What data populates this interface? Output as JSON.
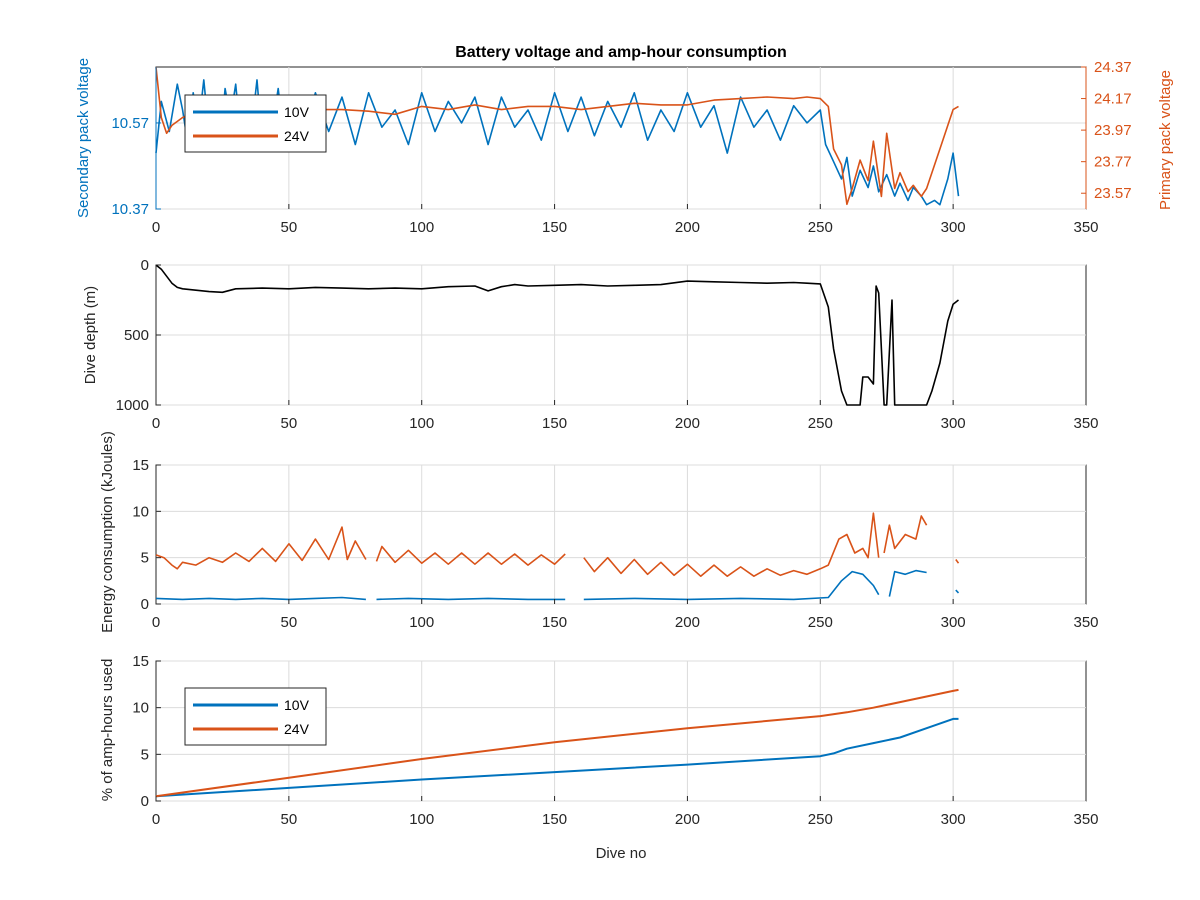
{
  "colors": {
    "blue": "#0072BD",
    "orange": "#D95319",
    "black": "#000000",
    "axis": "#262626",
    "grid": "#dcdcdc"
  },
  "chart_data": [
    {
      "type": "line",
      "title": "Battery voltage and amp-hour consumption",
      "xlabel": "",
      "ylabel": "Secondary pack voltage",
      "ylabel_right": "Primary pack voltage",
      "xlim": [
        0,
        350
      ],
      "ylim": [
        10.37,
        10.7
      ],
      "ylim_right": [
        23.47,
        24.37
      ],
      "xticks": [
        "0",
        "50",
        "100",
        "150",
        "200",
        "250",
        "300",
        "350"
      ],
      "yticks": [
        "10.37",
        "10.57"
      ],
      "yticks_right": [
        "23.57",
        "23.77",
        "23.97",
        "24.17",
        "24.37"
      ],
      "grid": true,
      "legend": {
        "placement": "top-left",
        "entries": [
          "10V",
          "24V"
        ]
      },
      "series": [
        {
          "name": "10V",
          "axis": "left",
          "x": [
            0,
            2,
            5,
            8,
            10,
            12,
            14,
            16,
            18,
            20,
            22,
            24,
            26,
            28,
            30,
            32,
            34,
            36,
            38,
            40,
            42,
            44,
            46,
            48,
            50,
            55,
            60,
            65,
            70,
            75,
            80,
            85,
            90,
            95,
            100,
            105,
            110,
            115,
            120,
            125,
            130,
            135,
            140,
            145,
            150,
            155,
            160,
            165,
            170,
            175,
            180,
            185,
            190,
            195,
            200,
            205,
            210,
            215,
            220,
            225,
            230,
            235,
            240,
            245,
            250,
            252,
            255,
            258,
            260,
            262,
            265,
            268,
            270,
            272,
            275,
            278,
            280,
            283,
            285,
            288,
            290,
            293,
            295,
            298,
            300,
            302
          ],
          "values": [
            10.5,
            10.62,
            10.55,
            10.66,
            10.6,
            10.52,
            10.64,
            10.56,
            10.67,
            10.54,
            10.62,
            10.51,
            10.65,
            10.58,
            10.66,
            10.53,
            10.62,
            10.56,
            10.67,
            10.52,
            10.63,
            10.57,
            10.65,
            10.54,
            10.6,
            10.53,
            10.64,
            10.55,
            10.63,
            10.52,
            10.64,
            10.56,
            10.6,
            10.52,
            10.64,
            10.55,
            10.62,
            10.57,
            10.63,
            10.52,
            10.63,
            10.56,
            10.6,
            10.53,
            10.64,
            10.55,
            10.63,
            10.54,
            10.62,
            10.56,
            10.64,
            10.53,
            10.6,
            10.55,
            10.64,
            10.56,
            10.61,
            10.5,
            10.63,
            10.56,
            10.6,
            10.53,
            10.61,
            10.57,
            10.6,
            10.52,
            10.48,
            10.44,
            10.49,
            10.4,
            10.46,
            10.42,
            10.47,
            10.41,
            10.45,
            10.4,
            10.43,
            10.39,
            10.42,
            10.4,
            10.38,
            10.39,
            10.38,
            10.44,
            10.5,
            10.4
          ]
        },
        {
          "name": "24V",
          "axis": "right",
          "x": [
            0,
            2,
            4,
            6,
            10,
            15,
            20,
            25,
            30,
            40,
            50,
            60,
            70,
            80,
            90,
            100,
            110,
            120,
            130,
            140,
            150,
            160,
            170,
            180,
            190,
            200,
            210,
            220,
            230,
            240,
            245,
            250,
            253,
            255,
            258,
            260,
            262,
            265,
            268,
            270,
            273,
            275,
            278,
            280,
            283,
            285,
            288,
            290,
            292,
            295,
            298,
            300,
            302
          ],
          "values": [
            24.37,
            24.05,
            23.95,
            24.0,
            24.05,
            24.08,
            24.1,
            24.12,
            24.1,
            24.08,
            24.12,
            24.1,
            24.1,
            24.09,
            24.07,
            24.12,
            24.1,
            24.13,
            24.1,
            24.12,
            24.12,
            24.1,
            24.12,
            24.14,
            24.13,
            24.13,
            24.16,
            24.17,
            24.18,
            24.17,
            24.18,
            24.17,
            24.12,
            23.85,
            23.75,
            23.5,
            23.6,
            23.78,
            23.65,
            23.9,
            23.55,
            23.95,
            23.6,
            23.7,
            23.58,
            23.62,
            23.55,
            23.6,
            23.7,
            23.85,
            24.0,
            24.1,
            24.12
          ]
        }
      ]
    },
    {
      "type": "line",
      "title": "",
      "xlabel": "",
      "ylabel": "Dive depth (m)",
      "xlim": [
        0,
        350
      ],
      "ylim": [
        0,
        1000
      ],
      "y_reversed": true,
      "xticks": [
        "0",
        "50",
        "100",
        "150",
        "200",
        "250",
        "300",
        "350"
      ],
      "yticks": [
        "0",
        "500",
        "1000"
      ],
      "grid": true,
      "series": [
        {
          "x": [
            0,
            2,
            4,
            6,
            8,
            10,
            15,
            20,
            25,
            30,
            40,
            50,
            60,
            70,
            80,
            90,
            100,
            110,
            120,
            125,
            130,
            135,
            140,
            150,
            160,
            170,
            180,
            190,
            200,
            210,
            220,
            230,
            240,
            245,
            250,
            253,
            255,
            258,
            260,
            262,
            265,
            266,
            268,
            270,
            271,
            272,
            274,
            275,
            277,
            278,
            280,
            283,
            285,
            288,
            290,
            292,
            295,
            298,
            300,
            302
          ],
          "values": [
            0,
            30,
            80,
            130,
            160,
            170,
            180,
            190,
            195,
            170,
            165,
            170,
            160,
            165,
            170,
            165,
            170,
            155,
            150,
            185,
            155,
            140,
            150,
            145,
            140,
            150,
            145,
            140,
            115,
            120,
            125,
            130,
            125,
            130,
            135,
            300,
            600,
            900,
            1000,
            1000,
            1000,
            800,
            800,
            850,
            150,
            200,
            1000,
            1000,
            250,
            1000,
            1000,
            1000,
            1000,
            1000,
            1000,
            900,
            700,
            400,
            280,
            250
          ]
        }
      ]
    },
    {
      "type": "line",
      "title": "",
      "xlabel": "",
      "ylabel": "Energy consumption (kJoules)",
      "xlim": [
        0,
        350
      ],
      "ylim": [
        0,
        15
      ],
      "xticks": [
        "0",
        "50",
        "100",
        "150",
        "200",
        "250",
        "300",
        "350"
      ],
      "yticks": [
        "0",
        "5",
        "10",
        "15"
      ],
      "grid": true,
      "series": [
        {
          "name": "10V",
          "segments": [
            {
              "x": [
                0,
                10,
                20,
                30,
                40,
                50,
                60,
                70,
                79
              ],
              "values": [
                0.6,
                0.5,
                0.6,
                0.5,
                0.6,
                0.5,
                0.6,
                0.7,
                0.5
              ]
            },
            {
              "x": [
                83,
                95,
                110,
                125,
                140,
                154
              ],
              "values": [
                0.5,
                0.6,
                0.5,
                0.6,
                0.5,
                0.5
              ]
            },
            {
              "x": [
                161,
                180,
                200,
                220,
                240,
                253,
                258,
                262,
                266,
                270,
                272
              ],
              "values": [
                0.5,
                0.6,
                0.5,
                0.6,
                0.5,
                0.7,
                2.5,
                3.5,
                3.2,
                2.0,
                1.0
              ]
            },
            {
              "x": [
                276,
                278,
                282,
                286,
                290
              ],
              "values": [
                0.8,
                3.5,
                3.2,
                3.6,
                3.4
              ]
            },
            {
              "x": [
                301,
                302
              ],
              "values": [
                1.5,
                1.2
              ]
            }
          ]
        },
        {
          "name": "24V",
          "segments": [
            {
              "x": [
                0,
                3,
                6,
                8,
                10,
                15,
                20,
                25,
                30,
                35,
                40,
                45,
                50,
                55,
                60,
                65,
                70,
                72,
                75,
                79
              ],
              "values": [
                5.3,
                5.0,
                4.2,
                3.8,
                4.5,
                4.2,
                5.0,
                4.5,
                5.5,
                4.6,
                6.0,
                4.6,
                6.5,
                4.7,
                7.0,
                4.8,
                8.3,
                4.8,
                6.8,
                4.8
              ]
            },
            {
              "x": [
                83,
                85,
                90,
                95,
                100,
                105,
                110,
                115,
                120,
                125,
                130,
                135,
                140,
                145,
                150,
                154
              ],
              "values": [
                4.6,
                6.2,
                4.5,
                5.8,
                4.4,
                5.5,
                4.3,
                5.5,
                4.3,
                5.5,
                4.3,
                5.4,
                4.2,
                5.3,
                4.3,
                5.4
              ]
            },
            {
              "x": [
                161,
                165,
                170,
                175,
                180,
                185,
                190,
                195,
                200,
                205,
                210,
                215,
                220,
                225,
                230,
                235,
                240,
                245,
                250,
                253,
                257,
                260,
                263,
                266,
                268,
                270,
                272
              ],
              "values": [
                5.0,
                3.5,
                5.0,
                3.3,
                4.8,
                3.2,
                4.5,
                3.1,
                4.3,
                3.0,
                4.2,
                3.0,
                4.0,
                3.0,
                3.8,
                3.1,
                3.6,
                3.2,
                3.8,
                4.2,
                7.0,
                7.5,
                5.5,
                6.0,
                5.0,
                9.8,
                5.0
              ]
            },
            {
              "x": [
                274,
                276,
                278,
                282,
                286,
                288,
                290
              ],
              "values": [
                5.5,
                8.5,
                6.0,
                7.5,
                7.0,
                9.5,
                8.5
              ]
            },
            {
              "x": [
                301,
                302
              ],
              "values": [
                4.8,
                4.4
              ]
            }
          ]
        }
      ]
    },
    {
      "type": "line",
      "title": "",
      "xlabel": "Dive no",
      "ylabel": "% of amp-hours used",
      "xlim": [
        0,
        350
      ],
      "ylim": [
        0,
        15
      ],
      "xticks": [
        "0",
        "50",
        "100",
        "150",
        "200",
        "250",
        "300",
        "350"
      ],
      "yticks": [
        "0",
        "5",
        "10",
        "15"
      ],
      "grid": true,
      "legend": {
        "placement": "top-left",
        "entries": [
          "10V",
          "24V"
        ]
      },
      "series": [
        {
          "name": "10V",
          "x": [
            0,
            50,
            100,
            150,
            200,
            250,
            255,
            260,
            270,
            280,
            290,
            300,
            302
          ],
          "values": [
            0.5,
            1.4,
            2.3,
            3.1,
            3.9,
            4.8,
            5.1,
            5.6,
            6.2,
            6.8,
            7.8,
            8.8,
            8.8
          ]
        },
        {
          "name": "24V",
          "x": [
            0,
            50,
            100,
            150,
            200,
            250,
            260,
            270,
            280,
            290,
            300,
            302
          ],
          "values": [
            0.5,
            2.5,
            4.5,
            6.3,
            7.8,
            9.1,
            9.5,
            10.0,
            10.6,
            11.2,
            11.8,
            11.9
          ]
        }
      ]
    }
  ]
}
